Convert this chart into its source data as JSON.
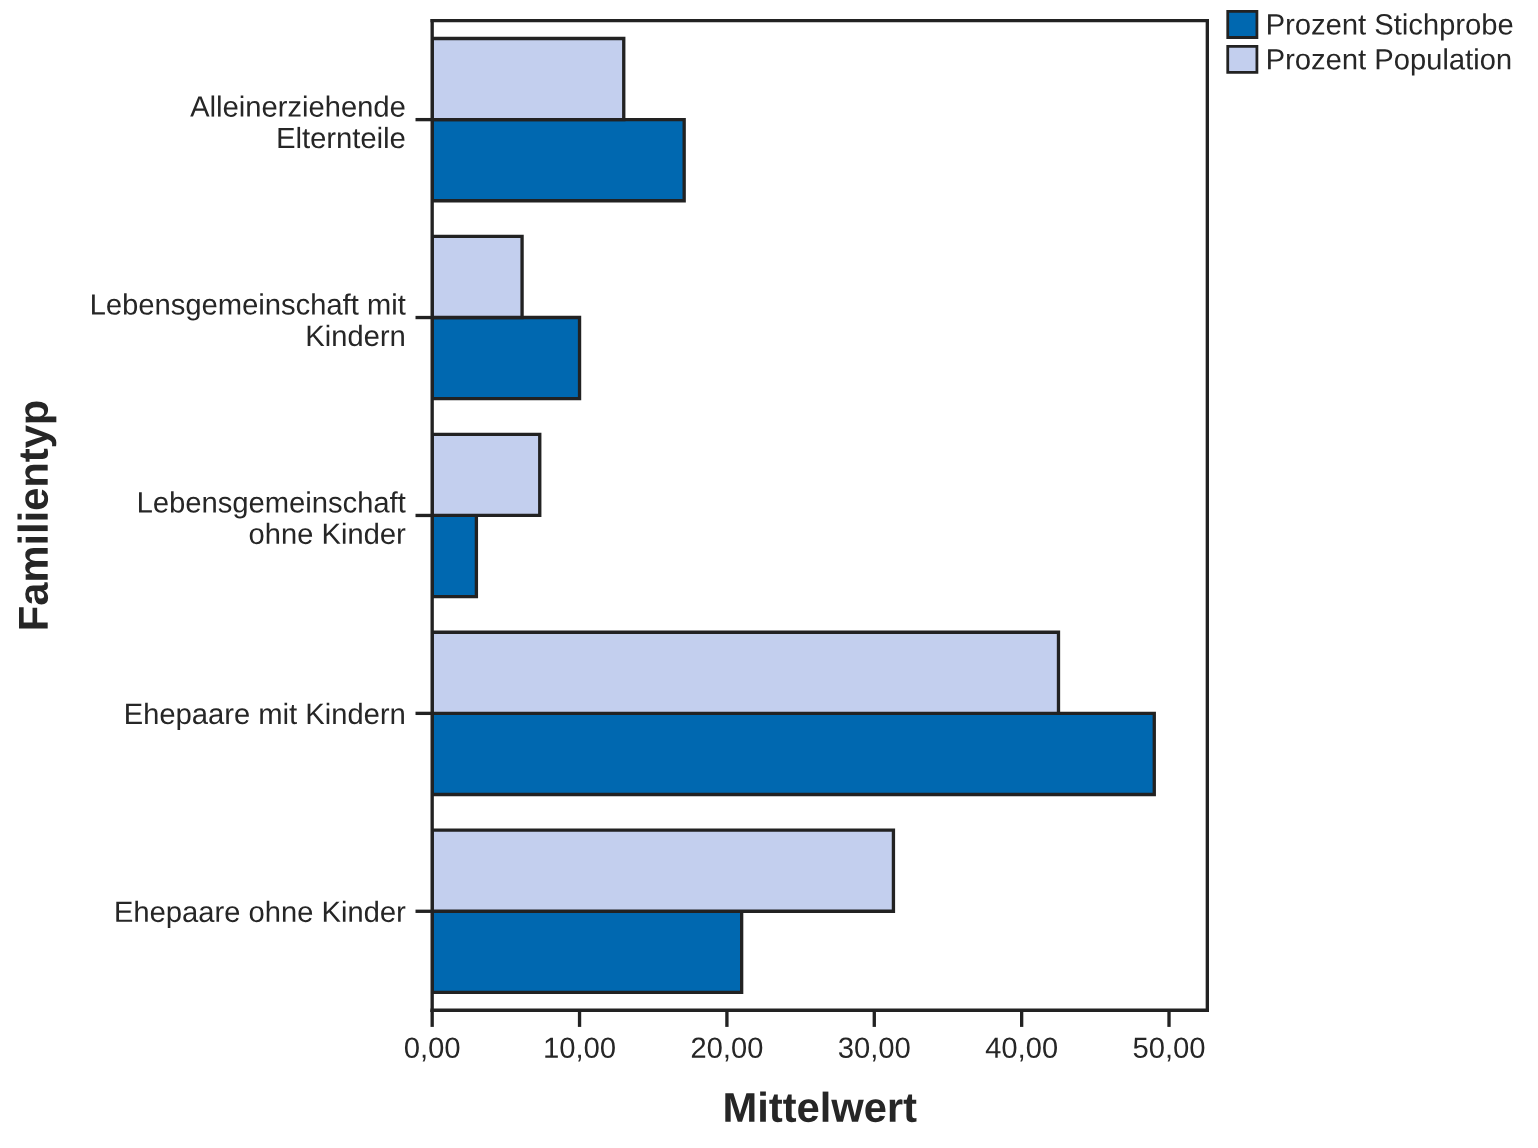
{
  "chart_data": {
    "type": "bar",
    "orientation": "horizontal",
    "xlabel": "Mittelwert",
    "ylabel": "Familientyp",
    "categories": [
      "Alleinerziehende\nElternteile",
      "Lebensgemeinschaft mit\nKindern",
      "Lebensgemeinschaft\nohne Kinder",
      "Ehepaare mit Kindern",
      "Ehepaare ohne Kinder"
    ],
    "series": [
      {
        "name": "Prozent Stichprobe",
        "color": "#0068b0",
        "values": [
          17.1,
          10.0,
          3.0,
          49.0,
          21.0
        ]
      },
      {
        "name": "Prozent Population",
        "color": "#c3cfee",
        "values": [
          13.0,
          6.1,
          7.3,
          42.5,
          31.3
        ]
      }
    ],
    "xlim": [
      0,
      52.6
    ],
    "xticks": [
      {
        "value": 0,
        "label": "0,00"
      },
      {
        "value": 10,
        "label": "10,00"
      },
      {
        "value": 20,
        "label": "20,00"
      },
      {
        "value": 30,
        "label": "30,00"
      },
      {
        "value": 40,
        "label": "40,00"
      },
      {
        "value": 50,
        "label": "50,00"
      }
    ],
    "grid": false,
    "legend": "top right"
  }
}
